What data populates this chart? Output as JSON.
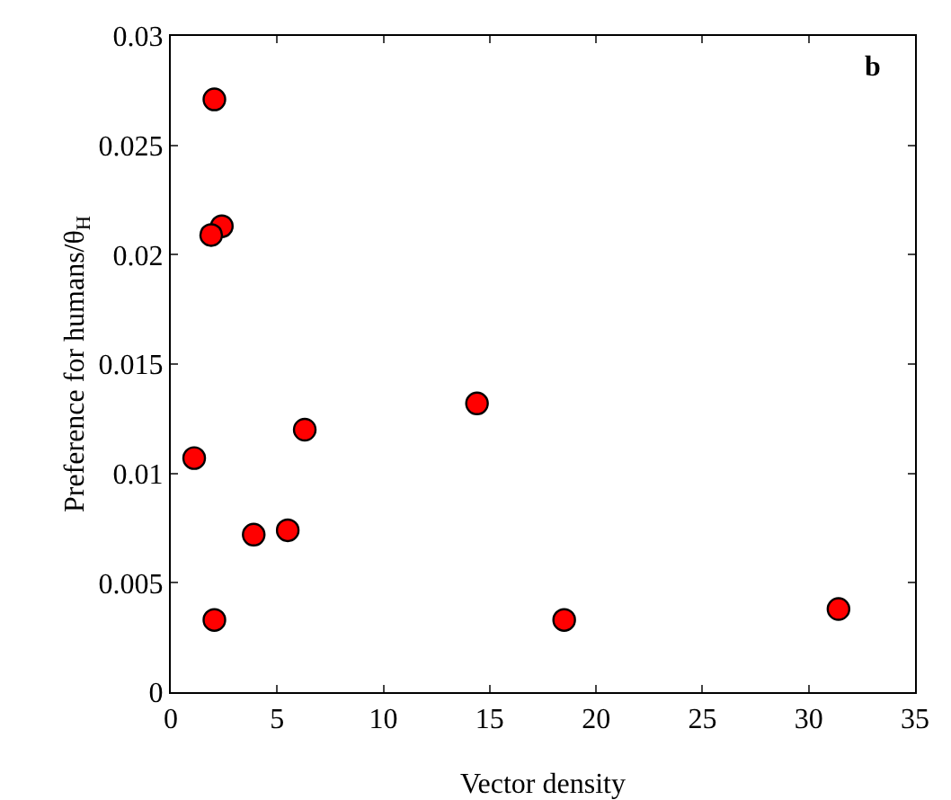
{
  "chart_data": {
    "type": "scatter",
    "xlabel": "Vector density",
    "ylabel": "Preference for humans/θ$_{H}$",
    "annotations": [
      "b"
    ],
    "x": [
      2.05,
      2.4,
      1.9,
      1.1,
      2.05,
      3.9,
      5.5,
      6.3,
      14.4,
      18.5,
      31.4
    ],
    "series": [
      {
        "color": "#ff0000",
        "values": [
          0.0271,
          0.0213,
          0.0209,
          0.0107,
          0.0033,
          0.0072,
          0.0074,
          0.012,
          0.0132,
          0.0033,
          0.0038
        ]
      }
    ],
    "xlim": [
      0,
      35
    ],
    "xticks": [
      0,
      5,
      10,
      15,
      20,
      25,
      30,
      35
    ],
    "ylim": [
      0,
      0.03
    ],
    "yticks": [
      0,
      0.005,
      0.01,
      0.015,
      0.02,
      0.025,
      0.03
    ],
    "grid": false,
    "legend": false,
    "marker": "circle"
  }
}
